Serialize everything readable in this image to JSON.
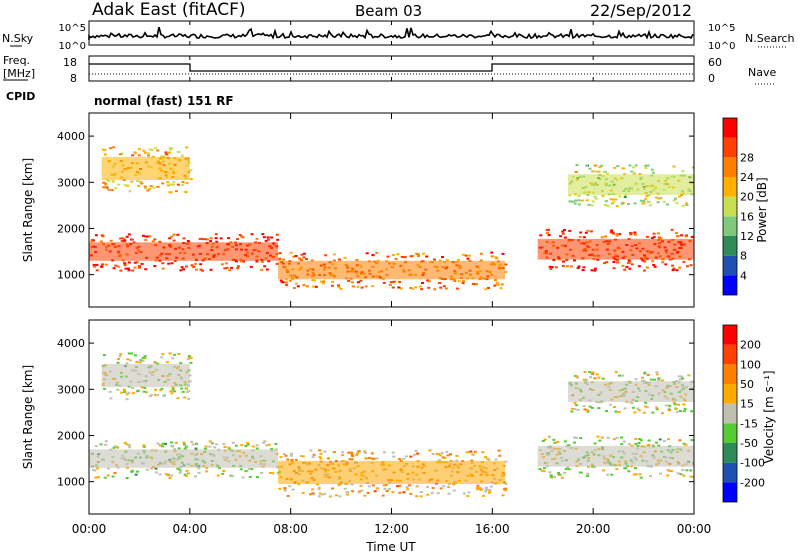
{
  "header": {
    "station": "Adak East (fitACF)",
    "beam": "Beam 03",
    "date": "22/Sep/2012"
  },
  "noise_panel": {
    "left_label": "N.Sky",
    "right_label": "N.Search",
    "left_ticks": [
      "10^5",
      "10^0"
    ],
    "right_ticks": [
      "10^5",
      "10^0"
    ]
  },
  "freq_panel": {
    "left_label_1": "Freq.",
    "left_label_2": "[MHz]",
    "right_label": "Nave",
    "left_ticks": [
      "18",
      "8"
    ],
    "right_ticks": [
      "60",
      "0"
    ]
  },
  "cpid_panel": {
    "label": "CPID",
    "mode": "normal (fast) 151 RF"
  },
  "colors": {
    "power_scale": [
      "#0000ff",
      "#1e50b4",
      "#2e8b57",
      "#7fc97f",
      "#c8e050",
      "#ffb000",
      "#ff7f00",
      "#ff4000",
      "#ff0000"
    ],
    "velocity_scale": [
      "#0000ff",
      "#1e50b4",
      "#2e8b57",
      "#55cc33",
      "#c0c0b0",
      "#ffaa00",
      "#ff7f00",
      "#ff4000",
      "#ff0000"
    ]
  },
  "chart_data": [
    {
      "type": "heatmap",
      "ylabel": "Slant Range [km]",
      "yticks": [
        "1000",
        "2000",
        "3000",
        "4000"
      ],
      "ylim": [
        300,
        4500
      ],
      "colorbar_label": "Power [dB]",
      "colorbar_ticks": [
        "4",
        "8",
        "12",
        "16",
        "20",
        "24",
        "28"
      ],
      "colorbar_range": [
        0,
        32
      ],
      "observed_regions": [
        {
          "t0": 0.0,
          "t1": 7.5,
          "r0": 1100,
          "r1": 1900,
          "value": 28
        },
        {
          "t0": 7.5,
          "t1": 16.5,
          "r0": 700,
          "r1": 1500,
          "value": 24
        },
        {
          "t0": 17.8,
          "t1": 24.0,
          "r0": 1100,
          "r1": 2000,
          "value": 28
        },
        {
          "t0": 0.5,
          "t1": 4.0,
          "r0": 2800,
          "r1": 3800,
          "value": 20
        },
        {
          "t0": 19.0,
          "t1": 24.0,
          "r0": 2500,
          "r1": 3400,
          "value": 16
        }
      ]
    },
    {
      "type": "heatmap",
      "xlabel": "Time UT",
      "xticks": [
        "00:00",
        "04:00",
        "08:00",
        "12:00",
        "16:00",
        "20:00",
        "00:00"
      ],
      "xlim": [
        0,
        24
      ],
      "ylabel": "Slant Range [km]",
      "yticks": [
        "1000",
        "2000",
        "3000",
        "4000"
      ],
      "ylim": [
        300,
        4500
      ],
      "colorbar_label": "Velocity [m s⁻¹]",
      "colorbar_ticks": [
        "200",
        "100",
        "50",
        "15",
        "-15",
        "-50",
        "-100",
        "-200"
      ],
      "colorbar_range": [
        -250,
        250
      ],
      "observed_regions": [
        {
          "t0": 0.0,
          "t1": 7.5,
          "r0": 1100,
          "r1": 1900,
          "value": 0
        },
        {
          "t0": 7.5,
          "t1": 16.5,
          "r0": 700,
          "r1": 1700,
          "value": 60
        },
        {
          "t0": 17.8,
          "t1": 24.0,
          "r0": 1100,
          "r1": 2000,
          "value": 0
        },
        {
          "t0": 0.5,
          "t1": 4.0,
          "r0": 2800,
          "r1": 3800,
          "value": 0
        },
        {
          "t0": 19.0,
          "t1": 24.0,
          "r0": 2500,
          "r1": 3400,
          "value": 0
        }
      ]
    }
  ]
}
